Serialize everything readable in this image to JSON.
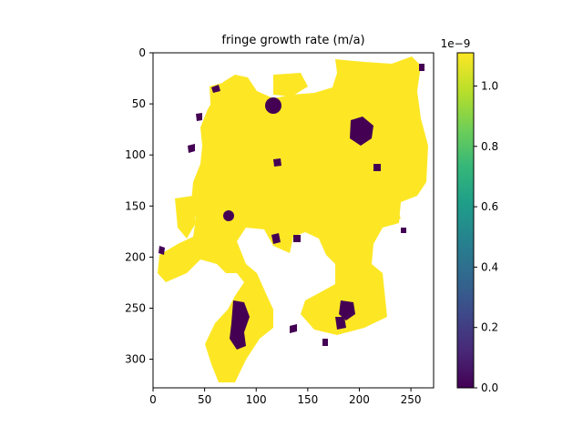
{
  "chart_data": {
    "type": "heatmap",
    "title": "fringe growth rate (m/a)",
    "xlabel": "",
    "ylabel": "",
    "x_ticks": [
      0,
      50,
      100,
      150,
      200,
      250
    ],
    "y_ticks": [
      0,
      50,
      100,
      150,
      200,
      250,
      300
    ],
    "xlim": [
      0,
      272
    ],
    "ylim": [
      328,
      0
    ],
    "colorbar": {
      "colormap": "viridis",
      "ticks": [
        "0.0",
        "0.2",
        "0.4",
        "0.6",
        "0.8",
        "1.0"
      ],
      "tick_values": [
        0.0,
        0.2,
        0.4,
        0.6,
        0.8,
        1.0
      ],
      "vmin": 0.0,
      "vmax": 1.11,
      "offset_text": "1e−9"
    },
    "colors": {
      "high": "#fde725",
      "low": "#440154",
      "nan": "#ffffff"
    },
    "regions": {
      "high_value_region": "yellow (~1.1e-9 m/a) fringe network",
      "low_value_patches": "dark purple (~0 m/a) spots along edges and interior"
    }
  }
}
